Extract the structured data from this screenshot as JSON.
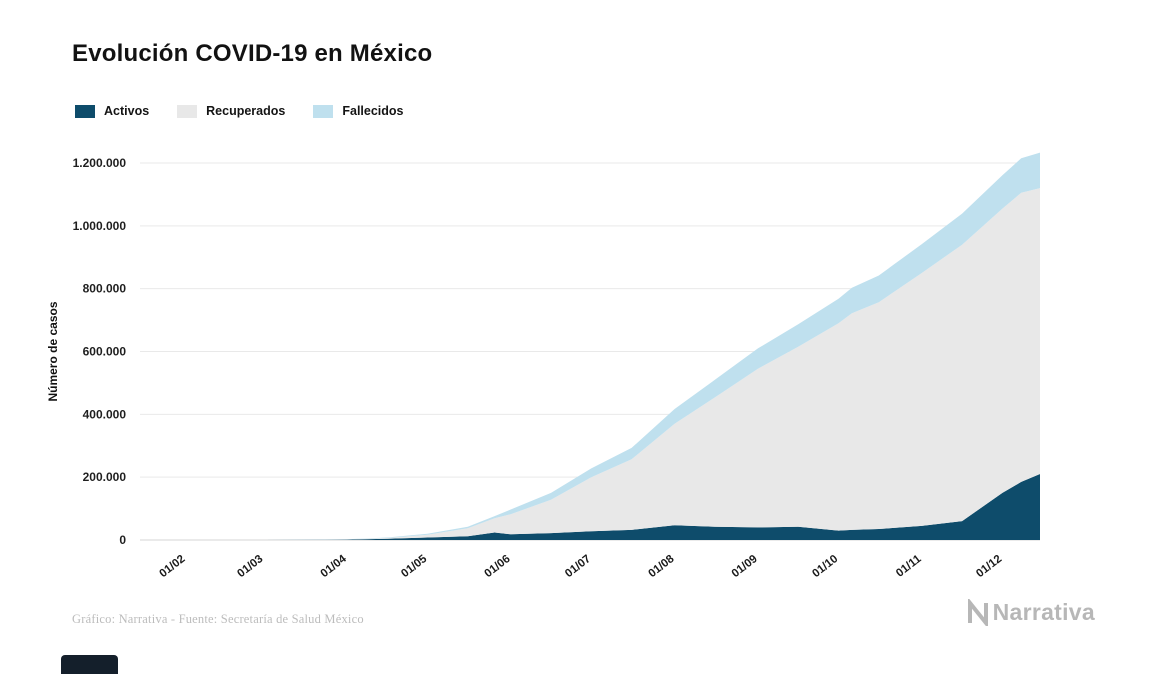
{
  "header": {
    "title": "Evolución COVID-19 en México"
  },
  "legend": {
    "items": [
      {
        "label": "Activos",
        "color": "#0e4c6b"
      },
      {
        "label": "Recuperados",
        "color": "#e8e8e8"
      },
      {
        "label": "Fallecidos",
        "color": "#bfe0ee"
      }
    ]
  },
  "chart_data": {
    "type": "area",
    "stacked": true,
    "title": "Evolución COVID-19 en México",
    "xlabel": "",
    "ylabel": "Número de casos",
    "ylim": [
      0,
      1260000
    ],
    "grid": "horizontal",
    "legend_position": "top-left",
    "series": [
      {
        "name": "Activos",
        "color": "#0e4c6b"
      },
      {
        "name": "Recuperados",
        "color": "#e8e8e8"
      },
      {
        "name": "Fallecidos",
        "color": "#bfe0ee"
      }
    ],
    "x_domain_days": [
      0,
      335
    ],
    "xticks": [
      {
        "day": 17,
        "label": "01/02"
      },
      {
        "day": 46,
        "label": "01/03"
      },
      {
        "day": 77,
        "label": "01/04"
      },
      {
        "day": 107,
        "label": "01/05"
      },
      {
        "day": 138,
        "label": "01/06"
      },
      {
        "day": 168,
        "label": "01/07"
      },
      {
        "day": 199,
        "label": "01/08"
      },
      {
        "day": 230,
        "label": "01/09"
      },
      {
        "day": 260,
        "label": "01/10"
      },
      {
        "day": 291,
        "label": "01/11"
      },
      {
        "day": 321,
        "label": "01/12"
      }
    ],
    "yticks": [
      {
        "value": 0,
        "label": "0"
      },
      {
        "value": 200000,
        "label": "200.000"
      },
      {
        "value": 400000,
        "label": "400.000"
      },
      {
        "value": 600000,
        "label": "600.000"
      },
      {
        "value": 800000,
        "label": "800.000"
      },
      {
        "value": 1000000,
        "label": "1.000.000"
      },
      {
        "value": 1200000,
        "label": "1.200.000"
      }
    ],
    "point_fields": [
      "day_offset_from_mid_january",
      "activos",
      "recuperados",
      "fallecidos"
    ],
    "points": [
      [
        0,
        0,
        0,
        0
      ],
      [
        17,
        0,
        0,
        0
      ],
      [
        32,
        0,
        0,
        0
      ],
      [
        46,
        50,
        0,
        0
      ],
      [
        61,
        300,
        150,
        50
      ],
      [
        77,
        1300,
        600,
        600
      ],
      [
        92,
        4000,
        2500,
        1500
      ],
      [
        107,
        8000,
        8700,
        3300
      ],
      [
        122,
        12000,
        25500,
        4500
      ],
      [
        132,
        24000,
        45000,
        7000
      ],
      [
        138,
        18000,
        64000,
        15000
      ],
      [
        153,
        22000,
        106000,
        22000
      ],
      [
        168,
        28000,
        172000,
        28000
      ],
      [
        183,
        32000,
        225000,
        36000
      ],
      [
        199,
        47000,
        323000,
        47000
      ],
      [
        214,
        42000,
        412000,
        56000
      ],
      [
        230,
        40000,
        505000,
        65000
      ],
      [
        245,
        42000,
        573000,
        72000
      ],
      [
        260,
        30000,
        660000,
        78000
      ],
      [
        265,
        32000,
        690000,
        81000
      ],
      [
        275,
        35000,
        722000,
        85000
      ],
      [
        291,
        45000,
        805000,
        92000
      ],
      [
        306,
        60000,
        880000,
        99000
      ],
      [
        321,
        150000,
        905000,
        106000
      ],
      [
        328,
        185000,
        920000,
        110000
      ],
      [
        335,
        210000,
        910000,
        113000
      ]
    ]
  },
  "footer": {
    "source_text": "Gráfico: Narrativa - Fuente: Secretaría de Salud México",
    "logo_text": "Narrativa"
  }
}
